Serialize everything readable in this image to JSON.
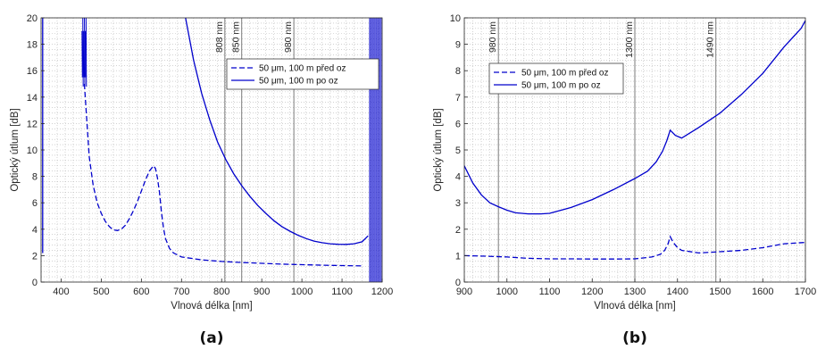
{
  "chart_data": [
    {
      "type": "line",
      "panel_label": "(a)",
      "xlabel": "Vlnová délka [nm]",
      "ylabel": "Optický útlum [dB]",
      "xlim": [
        350,
        1200
      ],
      "ylim": [
        0,
        20
      ],
      "xticks": [
        "400",
        "500",
        "600",
        "700",
        "800",
        "900",
        "1000",
        "1100",
        "1200"
      ],
      "yticks": [
        "0",
        "2",
        "4",
        "6",
        "8",
        "10",
        "12",
        "14",
        "16",
        "18",
        "20"
      ],
      "grid": "minor-dotted",
      "legend_position": "right-upper",
      "vlines": [
        {
          "x": 808,
          "label": "808 nm"
        },
        {
          "x": 850,
          "label": "850 nm"
        },
        {
          "x": 980,
          "label": "980 nm"
        }
      ],
      "series": [
        {
          "name": "50 μm, 100 m před oz",
          "style": "dashed",
          "color": "#0000cc",
          "x": [
            458,
            470,
            480,
            490,
            500,
            510,
            520,
            530,
            540,
            550,
            560,
            570,
            580,
            590,
            600,
            610,
            620,
            630,
            635,
            640,
            645,
            650,
            655,
            660,
            670,
            680,
            700,
            750,
            800,
            850,
            900,
            950,
            1000,
            1050,
            1100,
            1150
          ],
          "y": [
            15.0,
            9.5,
            7.3,
            6.0,
            5.2,
            4.6,
            4.2,
            3.95,
            3.9,
            4.0,
            4.3,
            4.8,
            5.4,
            6.1,
            6.9,
            7.7,
            8.4,
            8.8,
            8.6,
            7.9,
            6.8,
            5.3,
            4.1,
            3.3,
            2.55,
            2.2,
            1.9,
            1.68,
            1.56,
            1.48,
            1.42,
            1.36,
            1.32,
            1.28,
            1.25,
            1.22
          ]
        },
        {
          "name": "50 μm, 100 m po oz",
          "style": "solid",
          "color": "#0000cc",
          "x": [
            710,
            730,
            750,
            770,
            790,
            810,
            830,
            850,
            870,
            890,
            910,
            930,
            950,
            970,
            990,
            1010,
            1030,
            1050,
            1070,
            1090,
            1110,
            1130,
            1150,
            1165
          ],
          "y": [
            20.0,
            16.8,
            14.3,
            12.3,
            10.6,
            9.3,
            8.2,
            7.3,
            6.5,
            5.8,
            5.2,
            4.65,
            4.2,
            3.85,
            3.55,
            3.3,
            3.1,
            2.98,
            2.9,
            2.86,
            2.85,
            2.9,
            3.05,
            3.5
          ]
        }
      ]
    },
    {
      "type": "line",
      "panel_label": "(b)",
      "xlabel": "Vlnová délka [nm]",
      "ylabel": "Optický útlum [dB]",
      "xlim": [
        900,
        1700
      ],
      "ylim": [
        0,
        10
      ],
      "xticks": [
        "900",
        "1000",
        "1100",
        "1200",
        "1300",
        "1400",
        "1500",
        "1600",
        "1700"
      ],
      "yticks": [
        "0",
        "1",
        "2",
        "3",
        "4",
        "5",
        "6",
        "7",
        "8",
        "9",
        "10"
      ],
      "grid": "minor-dotted",
      "legend_position": "top-left",
      "vlines": [
        {
          "x": 980,
          "label": "980 nm"
        },
        {
          "x": 1300,
          "label": "1300 nm"
        },
        {
          "x": 1490,
          "label": "1490 nm"
        }
      ],
      "series": [
        {
          "name": "50 μm, 100 m před oz",
          "style": "dashed",
          "color": "#0000cc",
          "x": [
            900,
            950,
            1000,
            1050,
            1100,
            1150,
            1200,
            1250,
            1300,
            1340,
            1360,
            1370,
            1378,
            1383,
            1390,
            1400,
            1410,
            1450,
            1500,
            1550,
            1600,
            1650,
            1700
          ],
          "y": [
            1.0,
            0.98,
            0.95,
            0.9,
            0.88,
            0.88,
            0.87,
            0.87,
            0.88,
            0.95,
            1.05,
            1.2,
            1.45,
            1.72,
            1.5,
            1.3,
            1.2,
            1.1,
            1.15,
            1.2,
            1.3,
            1.45,
            1.5
          ]
        },
        {
          "name": "50 μm, 100 m po oz",
          "style": "solid",
          "color": "#0000cc",
          "x": [
            900,
            920,
            940,
            960,
            980,
            1000,
            1020,
            1050,
            1080,
            1100,
            1150,
            1200,
            1250,
            1300,
            1330,
            1350,
            1365,
            1375,
            1383,
            1395,
            1410,
            1450,
            1500,
            1550,
            1600,
            1650,
            1690,
            1700
          ],
          "y": [
            4.4,
            3.75,
            3.3,
            3.0,
            2.85,
            2.72,
            2.62,
            2.58,
            2.58,
            2.6,
            2.82,
            3.12,
            3.5,
            3.92,
            4.2,
            4.55,
            4.95,
            5.35,
            5.75,
            5.55,
            5.45,
            5.85,
            6.4,
            7.1,
            7.9,
            8.9,
            9.6,
            9.9
          ]
        }
      ]
    }
  ]
}
